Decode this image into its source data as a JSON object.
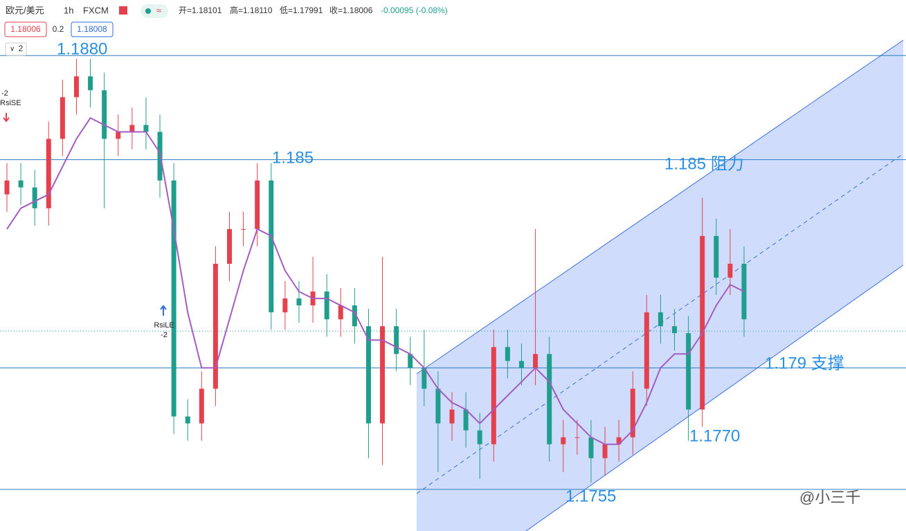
{
  "chart_data": {
    "type": "candlestick",
    "header": {
      "symbol": "欧元/美元",
      "interval": "1h",
      "source": "FXCM",
      "open": "开=1.18101",
      "high": "高=1.18110",
      "low": "低=1.17991",
      "close": "收=1.18006",
      "change": "-0.00095 (-0.08%)",
      "sell": "1.18006",
      "spread": "0.2",
      "buy": "1.18008",
      "layers": "2"
    },
    "signals": [
      "-2",
      "RsiSE",
      "RsiLE",
      "-2"
    ],
    "watermark": "@小三千",
    "ylim": [
      1.1743,
      1.1896
    ],
    "up_color": "#e5404e",
    "down_color": "#1f9e8e",
    "ma_color": "#a45cc0",
    "levels": [
      1.188,
      1.185,
      1.179,
      1.1755
    ],
    "last_price": 1.18006,
    "annotations": [
      "1.1880",
      "1.185",
      "1.185 阻力",
      "1.179 支撑",
      "1.1770",
      "1.1755"
    ],
    "open": [
      1.184,
      1.1844,
      1.1842,
      1.1836,
      1.1856,
      1.1868,
      1.1874,
      1.187,
      1.1856,
      1.1858,
      1.186,
      1.1858,
      1.1844,
      1.1776,
      1.1774,
      1.1784,
      1.182,
      1.183,
      1.183,
      1.1844,
      1.1806,
      1.181,
      1.1808,
      1.1812,
      1.1804,
      1.1808,
      1.1802,
      1.1774,
      1.1802,
      1.1794,
      1.179,
      1.1784,
      1.1774,
      1.1778,
      1.1772,
      1.1768,
      1.1796,
      1.1792,
      1.179,
      1.1794,
      1.1768,
      1.177,
      1.177,
      1.1764,
      1.1768,
      1.177,
      1.1784,
      1.1806,
      1.1802,
      1.18,
      1.1778,
      1.1828,
      1.1816,
      1.182
    ],
    "high": [
      1.1849,
      1.1849,
      1.1847,
      1.1861,
      1.1873,
      1.1879,
      1.1879,
      1.1875,
      1.1863,
      1.1865,
      1.1868,
      1.1863,
      1.1849,
      1.1781,
      1.1789,
      1.1825,
      1.1835,
      1.1835,
      1.1849,
      1.1849,
      1.1815,
      1.1815,
      1.1822,
      1.1817,
      1.1813,
      1.1813,
      1.1807,
      1.1822,
      1.1807,
      1.1799,
      1.1801,
      1.1789,
      1.1783,
      1.1783,
      1.1777,
      1.1801,
      1.1801,
      1.1797,
      1.183,
      1.1799,
      1.1775,
      1.1775,
      1.1775,
      1.1773,
      1.1775,
      1.1789,
      1.1811,
      1.1811,
      1.1807,
      1.1805,
      1.1839,
      1.1833,
      1.183,
      1.1825
    ],
    "low": [
      1.1835,
      1.1837,
      1.1831,
      1.1831,
      1.1851,
      1.1863,
      1.1865,
      1.1836,
      1.1851,
      1.1853,
      1.1853,
      1.1839,
      1.1771,
      1.1769,
      1.1769,
      1.1779,
      1.1815,
      1.1825,
      1.1825,
      1.1801,
      1.1801,
      1.1803,
      1.1803,
      1.1799,
      1.1799,
      1.1797,
      1.1764,
      1.1762,
      1.1789,
      1.1785,
      1.1779,
      1.176,
      1.1769,
      1.1767,
      1.1758,
      1.1763,
      1.1787,
      1.1785,
      1.1785,
      1.1763,
      1.176,
      1.1765,
      1.1757,
      1.1759,
      1.1763,
      1.1765,
      1.1779,
      1.1797,
      1.1795,
      1.1769,
      1.1773,
      1.1811,
      1.1811,
      1.1799
    ],
    "close": [
      1.1844,
      1.1842,
      1.1836,
      1.1856,
      1.1868,
      1.1874,
      1.187,
      1.1856,
      1.1858,
      1.186,
      1.1858,
      1.1844,
      1.1776,
      1.1774,
      1.1784,
      1.182,
      1.183,
      1.183,
      1.1844,
      1.1806,
      1.181,
      1.1808,
      1.1812,
      1.1804,
      1.1808,
      1.1802,
      1.1774,
      1.1802,
      1.1794,
      1.179,
      1.1784,
      1.1774,
      1.1778,
      1.1772,
      1.1768,
      1.1796,
      1.1792,
      1.179,
      1.1794,
      1.1768,
      1.177,
      1.177,
      1.1764,
      1.1768,
      1.177,
      1.1784,
      1.1806,
      1.1802,
      1.18,
      1.1778,
      1.1828,
      1.1816,
      1.182,
      1.1804
    ],
    "ma": [
      1.183,
      1.1836,
      1.1838,
      1.184,
      1.1848,
      1.1856,
      1.1862,
      1.186,
      1.1858,
      1.1858,
      1.1858,
      1.1852,
      1.183,
      1.1806,
      1.179,
      1.179,
      1.1804,
      1.1818,
      1.183,
      1.1828,
      1.1818,
      1.1812,
      1.181,
      1.181,
      1.1808,
      1.1806,
      1.1798,
      1.1798,
      1.1796,
      1.1794,
      1.179,
      1.1784,
      1.178,
      1.1778,
      1.1774,
      1.1778,
      1.1782,
      1.1786,
      1.179,
      1.1786,
      1.1778,
      1.1774,
      1.177,
      1.1768,
      1.1768,
      1.1772,
      1.178,
      1.179,
      1.1794,
      1.1794,
      1.18,
      1.1808,
      1.1814,
      1.1812
    ]
  }
}
